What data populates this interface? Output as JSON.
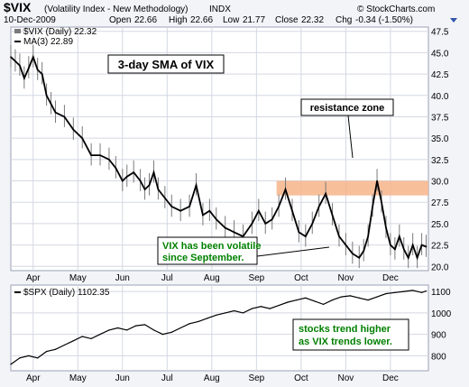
{
  "header": {
    "ticker": "$VIX",
    "description": "(Volatility Index - New Methodology)",
    "exchange": "INDX",
    "date": "10-Dec-2009",
    "open_label": "Open",
    "open": "22.66",
    "high_label": "High",
    "high": "22.66",
    "low_label": "Low",
    "low": "21.77",
    "close_label": "Close",
    "close": "22.32",
    "chg_label": "Chg",
    "chg": "-0.34 (-1.50%)",
    "watermark": "© StockCharts.com"
  },
  "colors": {
    "price_bars": "#7a7a7a",
    "sma_line": "#000000",
    "resistance": "#f7b48a",
    "annotation_text": "#008000",
    "panel_bg": "#ffffff",
    "chart_bg": "#f2f4f8",
    "grid": "#c8cdd8",
    "down_arrow": "#3355aa"
  },
  "chart_data": [
    {
      "type": "line",
      "legend": [
        "$VIX (Daily) 22.32",
        "MA(3) 22.89"
      ],
      "title_box": "3-day SMA of VIX",
      "annotations": {
        "resistance": "resistance zone",
        "volatile_1": "VIX has been volatile",
        "volatile_2": "since September."
      },
      "resistance_zone": [
        28.3,
        30.0
      ],
      "ylim": [
        19.5,
        48.0
      ],
      "y_ticks": [
        "47.5",
        "45.0",
        "42.5",
        "40.0",
        "37.5",
        "35.0",
        "32.5",
        "30.0",
        "27.5",
        "25.0",
        "22.5",
        "20.0"
      ],
      "x_ticks": [
        "Apr",
        "May",
        "Jun",
        "Jul",
        "Aug",
        "Sep",
        "Oct",
        "Nov",
        "Dec"
      ],
      "series": [
        {
          "name": "$VIX (Daily)",
          "x_months": [
            3.0,
            3.1,
            3.2,
            3.3,
            3.4,
            3.5,
            3.6,
            3.7,
            3.8,
            3.9,
            4.0,
            4.2,
            4.4,
            4.6,
            4.8,
            5.0,
            5.2,
            5.35,
            5.5,
            5.6,
            5.75,
            5.9,
            6.0,
            6.1,
            6.2,
            6.3,
            6.45,
            6.6,
            6.8,
            7.0,
            7.15,
            7.3,
            7.45,
            7.6,
            7.8,
            8.0,
            8.2,
            8.4,
            8.55,
            8.7,
            8.85,
            9.0,
            9.15,
            9.3,
            9.45,
            9.6,
            9.75,
            9.9,
            10.05,
            10.2,
            10.35,
            10.5,
            10.65,
            10.8,
            10.9,
            11.0,
            11.1,
            11.2,
            11.3,
            11.4,
            11.5,
            11.6,
            11.7,
            11.8,
            11.9,
            12.0,
            12.1,
            12.2,
            12.3
          ],
          "values": [
            44.5,
            44.0,
            43.5,
            42.0,
            43.2,
            44.5,
            43.0,
            42.5,
            40.0,
            39.0,
            38.0,
            37.5,
            36.0,
            35.0,
            33.0,
            33.0,
            32.5,
            31.5,
            30.0,
            30.5,
            31.0,
            30.0,
            29.0,
            29.5,
            31.0,
            29.0,
            28.0,
            27.0,
            26.5,
            27.0,
            29.5,
            26.0,
            26.5,
            25.5,
            24.5,
            24.0,
            23.5,
            25.0,
            26.5,
            25.0,
            25.5,
            27.0,
            29.0,
            26.5,
            24.0,
            23.5,
            25.0,
            27.0,
            28.5,
            26.0,
            23.5,
            22.5,
            21.5,
            21.0,
            21.8,
            23.5,
            27.0,
            30.0,
            27.5,
            24.5,
            22.5,
            22.0,
            23.5,
            22.0,
            21.0,
            22.5,
            21.0,
            22.5,
            22.3
          ]
        }
      ]
    },
    {
      "type": "line",
      "legend": [
        "$SPX (Daily) 1102.35"
      ],
      "annotations": {
        "trend_1": "stocks trend higher",
        "trend_2": "as VIX trends lower."
      },
      "ylim": [
        730,
        1130
      ],
      "y_ticks": [
        "1100",
        "1000",
        "900",
        "800"
      ],
      "x_ticks": [
        "Apr",
        "May",
        "Jun",
        "Jul",
        "Aug",
        "Sep",
        "Oct",
        "Nov",
        "Dec"
      ],
      "series": [
        {
          "name": "$SPX (Daily)",
          "x_months": [
            3.0,
            3.2,
            3.4,
            3.6,
            3.8,
            4.0,
            4.2,
            4.4,
            4.6,
            4.8,
            5.0,
            5.2,
            5.4,
            5.6,
            5.8,
            6.0,
            6.2,
            6.4,
            6.6,
            6.8,
            7.0,
            7.2,
            7.4,
            7.6,
            7.8,
            8.0,
            8.2,
            8.4,
            8.6,
            8.8,
            9.0,
            9.2,
            9.4,
            9.6,
            9.8,
            10.0,
            10.2,
            10.4,
            10.6,
            10.8,
            11.0,
            11.2,
            11.4,
            11.6,
            11.8,
            12.0,
            12.2,
            12.3
          ],
          "values": [
            760,
            790,
            800,
            790,
            820,
            830,
            850,
            870,
            890,
            880,
            900,
            920,
            930,
            920,
            940,
            945,
            920,
            900,
            910,
            930,
            950,
            960,
            975,
            990,
            1000,
            1010,
            1000,
            1020,
            1030,
            1020,
            1035,
            1050,
            1060,
            1070,
            1055,
            1040,
            1060,
            1075,
            1080,
            1070,
            1060,
            1075,
            1090,
            1095,
            1100,
            1105,
            1095,
            1102
          ]
        }
      ]
    }
  ]
}
